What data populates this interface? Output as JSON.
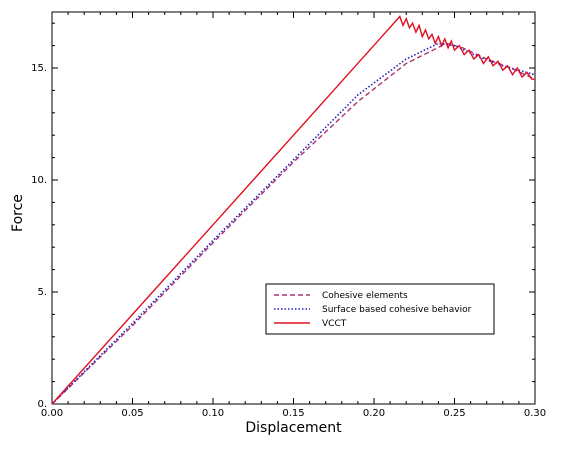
{
  "chart_data": {
    "type": "line",
    "title": "",
    "xlabel": "Displacement",
    "ylabel": "Force",
    "xlim": [
      0,
      0.3
    ],
    "ylim": [
      0,
      17.5
    ],
    "xticks": [
      0.0,
      0.05,
      0.1,
      0.15,
      0.2,
      0.25,
      0.3
    ],
    "xtick_labels": [
      "0.00",
      "0.05",
      "0.10",
      "0.15",
      "0.20",
      "0.25",
      "0.30"
    ],
    "yticks": [
      0,
      5,
      10,
      15
    ],
    "ytick_labels": [
      "0.",
      "5.",
      "10.",
      "15."
    ],
    "grid": false,
    "legend_position": "lower-right",
    "series": [
      {
        "name": "Cohesive elements",
        "color": "#b03070",
        "style": "dashed",
        "x": [
          0.0,
          0.05,
          0.1,
          0.15,
          0.19,
          0.22,
          0.245,
          0.255,
          0.27,
          0.285,
          0.3
        ],
        "y": [
          0.0,
          3.5,
          7.2,
          10.8,
          13.5,
          15.2,
          16.1,
          15.9,
          15.4,
          15.0,
          14.5
        ]
      },
      {
        "name": "Surface based cohesive behavior",
        "color": "#2020c0",
        "style": "dotted",
        "x": [
          0.0,
          0.05,
          0.1,
          0.15,
          0.19,
          0.22,
          0.24,
          0.25,
          0.265,
          0.28,
          0.3
        ],
        "y": [
          0.0,
          3.6,
          7.3,
          10.9,
          13.8,
          15.4,
          16.1,
          16.0,
          15.5,
          15.1,
          14.7
        ]
      },
      {
        "name": "VCCT",
        "color": "#e01020",
        "style": "solid",
        "x": [
          0.0,
          0.05,
          0.1,
          0.15,
          0.216,
          0.218,
          0.22,
          0.222,
          0.224,
          0.226,
          0.228,
          0.23,
          0.232,
          0.234,
          0.236,
          0.238,
          0.24,
          0.242,
          0.244,
          0.246,
          0.248,
          0.25,
          0.253,
          0.256,
          0.259,
          0.262,
          0.265,
          0.268,
          0.271,
          0.274,
          0.277,
          0.28,
          0.283,
          0.286,
          0.289,
          0.292,
          0.295,
          0.298,
          0.3
        ],
        "y": [
          0.0,
          4.0,
          8.0,
          12.0,
          17.3,
          16.9,
          17.2,
          16.8,
          17.0,
          16.6,
          16.9,
          16.4,
          16.7,
          16.3,
          16.5,
          16.1,
          16.4,
          16.0,
          16.3,
          15.9,
          16.2,
          15.8,
          16.0,
          15.6,
          15.8,
          15.4,
          15.6,
          15.2,
          15.5,
          15.1,
          15.3,
          14.9,
          15.1,
          14.7,
          15.0,
          14.6,
          14.8,
          14.5,
          14.5
        ]
      }
    ]
  }
}
